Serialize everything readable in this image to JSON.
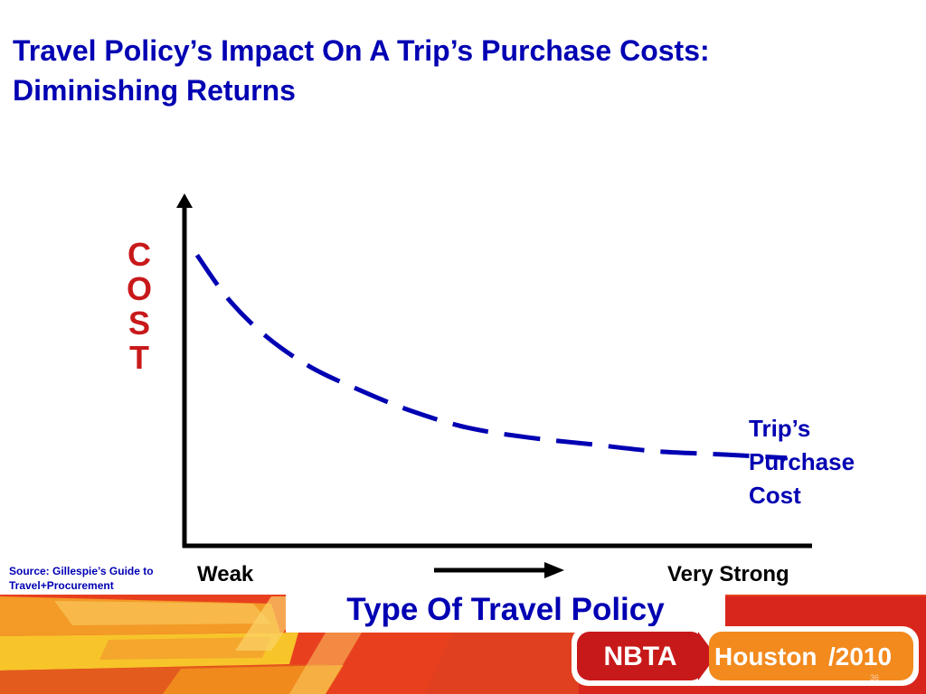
{
  "title": {
    "line1": "Travel Policy’s Impact On  A Trip’s Purchase Costs:",
    "line2": "Diminishing Returns"
  },
  "chart_data": {
    "type": "line",
    "ylabel_letters": [
      "C",
      "O",
      "S",
      "T"
    ],
    "xlabel": "Type Of Travel Policy",
    "x_ticks": [
      "Weak",
      "Very Strong"
    ],
    "series": [
      {
        "name": "Trip’s Purchase Cost",
        "name_lines": [
          "Trip’s",
          "Purchase",
          "Cost"
        ],
        "style": "dashed",
        "color": "#0000b3",
        "x": [
          0.02,
          0.07,
          0.13,
          0.2,
          0.28,
          0.36,
          0.45,
          0.55,
          0.65,
          0.75,
          0.86,
          0.96
        ],
        "y": [
          0.86,
          0.73,
          0.62,
          0.53,
          0.46,
          0.4,
          0.35,
          0.32,
          0.3,
          0.28,
          0.27,
          0.26
        ]
      }
    ],
    "xlim": [
      0,
      1
    ],
    "ylim": [
      0,
      1
    ],
    "grid": false,
    "axis_color": "#000000"
  },
  "source": {
    "line1": "Source: Gillespie’s Guide to",
    "line2": "Travel+Procurement"
  },
  "logo": {
    "org": "NBTA",
    "city": "Houston",
    "separator": "/",
    "year": "2010"
  },
  "page_number": "36",
  "colors": {
    "title": "#0000b3",
    "axis_label": "#c8191a",
    "banner_red": "#d9261c",
    "banner_orange": "#f08a1c",
    "banner_yellow": "#f7c52a"
  }
}
